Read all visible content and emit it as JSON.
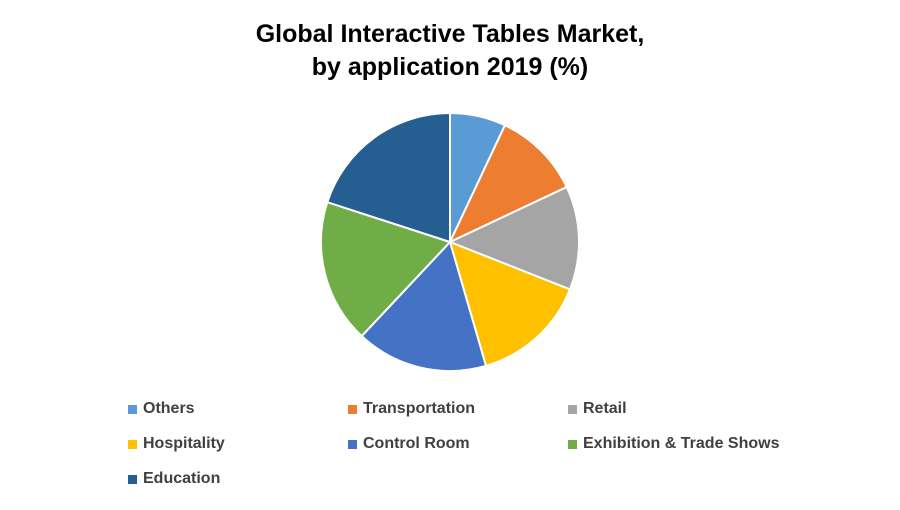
{
  "chart_data": {
    "type": "pie",
    "title_lines": [
      "Global Interactive Tables Market,",
      "by application 2019 (%)"
    ],
    "legend_placement": "bottom",
    "slices": [
      {
        "label": "Others",
        "value": 7,
        "color": "#5B9BD5"
      },
      {
        "label": "Transportation",
        "value": 11,
        "color": "#ED7D31"
      },
      {
        "label": "Retail",
        "value": 13,
        "color": "#A5A5A5"
      },
      {
        "label": "Hospitality",
        "value": 14.5,
        "color": "#FFC000"
      },
      {
        "label": "Control Room",
        "value": 16.5,
        "color": "#4472C4"
      },
      {
        "label": "Exhibition & Trade Shows",
        "value": 18,
        "color": "#70AD47"
      },
      {
        "label": "Education",
        "value": 20,
        "color": "#255E91"
      }
    ]
  }
}
